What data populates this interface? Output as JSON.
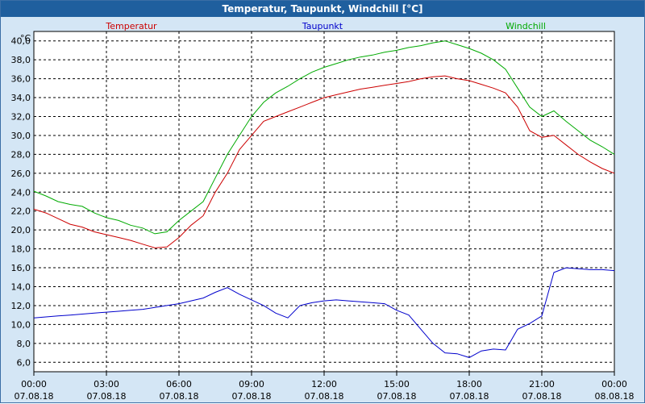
{
  "window": {
    "title": "Temperatur, Taupunkt, Windchill [°C]"
  },
  "chart_data": {
    "type": "line",
    "title": "Temperatur, Taupunkt, Windchill [°C]",
    "ylabel": "°C",
    "ylim": [
      5,
      41
    ],
    "yticks": [
      6,
      8,
      10,
      12,
      14,
      16,
      18,
      20,
      22,
      24,
      26,
      28,
      30,
      32,
      34,
      36,
      38,
      40
    ],
    "ytick_labels": [
      "6,0",
      "8,0",
      "10,0",
      "12,0",
      "14,0",
      "16,0",
      "18,0",
      "20,0",
      "22,0",
      "24,0",
      "26,0",
      "28,0",
      "30,0",
      "32,0",
      "34,0",
      "36,0",
      "38,0",
      "40,0"
    ],
    "xlim": [
      0,
      24
    ],
    "xticks": [
      0,
      3,
      6,
      9,
      12,
      15,
      18,
      21,
      24
    ],
    "xtick_times": [
      "00:00",
      "03:00",
      "06:00",
      "09:00",
      "12:00",
      "15:00",
      "18:00",
      "21:00",
      "00:00"
    ],
    "xtick_dates": [
      "07.08.18",
      "07.08.18",
      "07.08.18",
      "07.08.18",
      "07.08.18",
      "07.08.18",
      "07.08.18",
      "07.08.18",
      "08.08.18"
    ],
    "grid": true,
    "series": [
      {
        "name": "Temperatur",
        "color": "#cc0000",
        "x": [
          0,
          0.5,
          1,
          1.5,
          2,
          2.5,
          3,
          3.5,
          4,
          4.5,
          5,
          5.5,
          6,
          6.5,
          7,
          7.5,
          8,
          8.5,
          9,
          9.5,
          10,
          10.5,
          11,
          11.5,
          12,
          12.5,
          13,
          13.5,
          14,
          14.5,
          15,
          15.5,
          16,
          16.5,
          17,
          17.5,
          18,
          18.5,
          19,
          19.5,
          20,
          20.5,
          21,
          21.5,
          22,
          22.5,
          23,
          23.5,
          24
        ],
        "values": [
          22.2,
          21.8,
          21.2,
          20.6,
          20.3,
          19.8,
          19.5,
          19.2,
          18.9,
          18.5,
          18.1,
          18.2,
          19.2,
          20.5,
          21.5,
          24.0,
          26.0,
          28.5,
          30.0,
          31.5,
          32.0,
          32.5,
          33.0,
          33.5,
          34.0,
          34.3,
          34.6,
          34.9,
          35.1,
          35.3,
          35.5,
          35.7,
          36.0,
          36.2,
          36.3,
          36.0,
          35.8,
          35.4,
          35.0,
          34.5,
          33.0,
          30.5,
          29.8,
          30.0,
          29.0,
          28.0,
          27.2,
          26.5,
          26.0
        ]
      },
      {
        "name": "Taupunkt",
        "color": "#0000cc",
        "x": [
          0,
          0.5,
          1,
          1.5,
          2,
          2.5,
          3,
          3.5,
          4,
          4.5,
          5,
          5.5,
          6,
          6.5,
          7,
          7.5,
          8,
          8.5,
          9,
          9.5,
          10,
          10.5,
          11,
          11.5,
          12,
          12.5,
          13,
          13.5,
          14,
          14.5,
          15,
          15.5,
          16,
          16.5,
          17,
          17.5,
          18,
          18.5,
          19,
          19.5,
          20,
          20.5,
          21,
          21.5,
          22,
          22.5,
          23,
          23.5,
          24
        ],
        "values": [
          10.7,
          10.8,
          10.9,
          11.0,
          11.1,
          11.2,
          11.3,
          11.4,
          11.5,
          11.6,
          11.8,
          12.0,
          12.2,
          12.5,
          12.8,
          13.4,
          13.9,
          13.2,
          12.6,
          12.0,
          11.2,
          10.7,
          12.0,
          12.3,
          12.5,
          12.6,
          12.5,
          12.4,
          12.3,
          12.2,
          11.5,
          11.0,
          9.5,
          8.0,
          7.0,
          6.9,
          6.5,
          7.2,
          7.4,
          7.3,
          9.5,
          10.1,
          10.9,
          15.5,
          16.0,
          15.9,
          15.8,
          15.8,
          15.7
        ]
      },
      {
        "name": "Windchill",
        "color": "#00aa00",
        "x": [
          0,
          0.5,
          1,
          1.5,
          2,
          2.5,
          3,
          3.5,
          4,
          4.5,
          5,
          5.5,
          6,
          6.5,
          7,
          7.5,
          8,
          8.5,
          9,
          9.5,
          10,
          10.5,
          11,
          11.5,
          12,
          12.5,
          13,
          13.5,
          14,
          14.5,
          15,
          15.5,
          16,
          16.5,
          17,
          17.5,
          18,
          18.5,
          19,
          19.5,
          20,
          20.5,
          21,
          21.5,
          22,
          22.5,
          23,
          23.5,
          24
        ],
        "values": [
          24.1,
          23.6,
          23.0,
          22.7,
          22.5,
          21.8,
          21.3,
          21.0,
          20.5,
          20.2,
          19.6,
          19.8,
          21.0,
          22.0,
          23.0,
          25.5,
          28.0,
          30.0,
          32.0,
          33.5,
          34.5,
          35.2,
          36.0,
          36.7,
          37.2,
          37.6,
          38.0,
          38.3,
          38.5,
          38.8,
          39.0,
          39.3,
          39.5,
          39.8,
          40.0,
          39.6,
          39.2,
          38.7,
          38.0,
          37.0,
          35.0,
          33.0,
          32.0,
          32.6,
          31.5,
          30.5,
          29.5,
          28.8,
          28.0
        ]
      }
    ]
  }
}
